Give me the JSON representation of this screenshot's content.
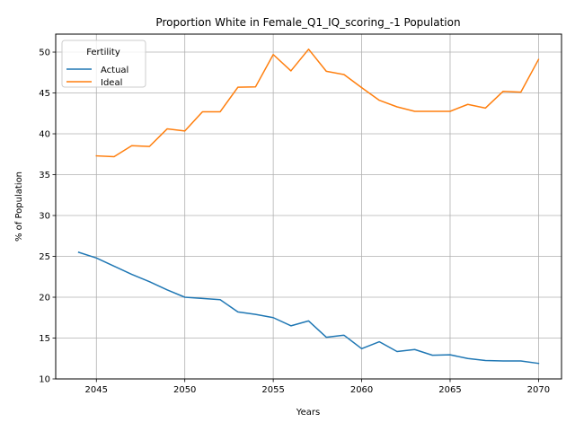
{
  "chart_data": {
    "type": "line",
    "title": "Proportion White in Female_Q1_IQ_scoring_-1 Population",
    "xlabel": "Years",
    "ylabel": "% of Population",
    "xlim": [
      2042.7,
      2071.3
    ],
    "ylim": [
      10,
      52.2
    ],
    "xticks": [
      2045,
      2050,
      2055,
      2060,
      2065,
      2070
    ],
    "yticks": [
      10,
      15,
      20,
      25,
      30,
      35,
      40,
      45,
      50
    ],
    "grid": true,
    "legend": {
      "title": "Fertility",
      "placement": "top-left"
    },
    "series": [
      {
        "name": "Actual",
        "color": "#1f77b4",
        "x": [
          2044,
          2045,
          2046,
          2047,
          2048,
          2049,
          2050,
          2051,
          2052,
          2053,
          2054,
          2055,
          2056,
          2057,
          2058,
          2059,
          2060,
          2061,
          2062,
          2063,
          2064,
          2065,
          2066,
          2067,
          2068,
          2069,
          2070
        ],
        "y": [
          25.5,
          24.8,
          23.8,
          22.8,
          21.9,
          20.9,
          20.0,
          19.85,
          19.7,
          18.2,
          17.9,
          17.5,
          16.5,
          17.1,
          15.1,
          15.35,
          13.7,
          14.55,
          13.35,
          13.6,
          12.9,
          12.95,
          12.5,
          12.25,
          12.2,
          12.2,
          11.9
        ]
      },
      {
        "name": "Ideal",
        "color": "#ff7f0e",
        "x": [
          2045,
          2046,
          2047,
          2048,
          2049,
          2050,
          2051,
          2052,
          2053,
          2054,
          2055,
          2056,
          2057,
          2058,
          2059,
          2060,
          2061,
          2062,
          2063,
          2064,
          2065,
          2066,
          2067,
          2068,
          2069,
          2070
        ],
        "y": [
          37.3,
          37.2,
          38.55,
          38.45,
          40.6,
          40.35,
          42.7,
          42.7,
          45.7,
          45.75,
          49.7,
          47.7,
          50.35,
          47.65,
          47.25,
          45.65,
          44.1,
          43.3,
          42.75,
          42.75,
          42.75,
          43.6,
          43.15,
          45.2,
          45.1,
          49.1
        ]
      }
    ]
  }
}
